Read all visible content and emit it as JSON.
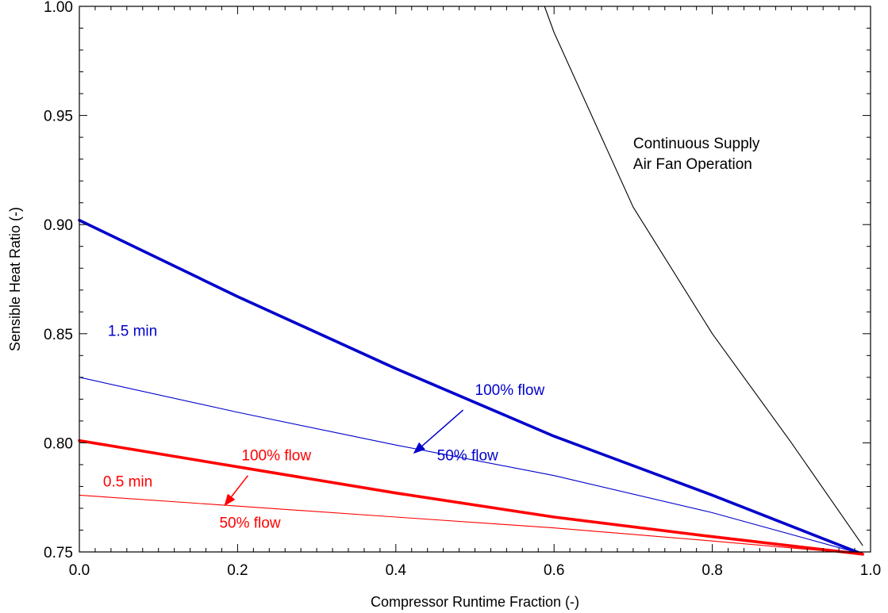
{
  "chart_data": {
    "type": "line",
    "title": "",
    "xlabel": "Compressor Runtime Fraction (-)",
    "ylabel": "Sensible Heat Ratio (-)",
    "xlim": [
      0.0,
      1.0
    ],
    "ylim": [
      0.75,
      1.0
    ],
    "x_ticks": [
      "0.0",
      "0.2",
      "0.4",
      "0.6",
      "0.8",
      "1.0"
    ],
    "y_ticks": [
      "0.75",
      "0.80",
      "0.85",
      "0.90",
      "0.95",
      "1.00"
    ],
    "grid": false,
    "legend": "none",
    "series": [
      {
        "color": "#0000cc",
        "width": "thick",
        "x": [
          0.0,
          0.2,
          0.4,
          0.6,
          0.8,
          0.99
        ],
        "y": [
          0.902,
          0.867,
          0.834,
          0.803,
          0.776,
          0.749
        ]
      },
      {
        "color": "#0000cc",
        "width": "thin",
        "x": [
          0.0,
          0.2,
          0.4,
          0.6,
          0.8,
          0.99
        ],
        "y": [
          0.83,
          0.814,
          0.799,
          0.785,
          0.768,
          0.749
        ]
      },
      {
        "color": "#ff0000",
        "width": "thick",
        "x": [
          0.0,
          0.2,
          0.4,
          0.6,
          0.8,
          0.99
        ],
        "y": [
          0.801,
          0.789,
          0.777,
          0.766,
          0.757,
          0.749
        ]
      },
      {
        "color": "#ff0000",
        "width": "thin",
        "x": [
          0.0,
          0.2,
          0.4,
          0.6,
          0.8,
          0.99
        ],
        "y": [
          0.776,
          0.771,
          0.766,
          0.761,
          0.755,
          0.749
        ]
      },
      {
        "color": "#000000",
        "width": "thin",
        "x": [
          0.588,
          0.6,
          0.7,
          0.8,
          0.9,
          0.99
        ],
        "y": [
          1.0,
          0.988,
          0.908,
          0.85,
          0.8,
          0.753
        ]
      }
    ],
    "annotations": [
      {
        "text_lines": [
          "Continuous Supply",
          "Air Fan Operation"
        ],
        "x": 0.7,
        "y": 0.935,
        "color": "#000000"
      },
      {
        "text_lines": [
          "1.5 min"
        ],
        "x": 0.036,
        "y": 0.849,
        "color": "#0000cc"
      },
      {
        "text_lines": [
          "100% flow"
        ],
        "x": 0.5,
        "y": 0.822,
        "color": "#0000cc"
      },
      {
        "text_lines": [
          "50% flow"
        ],
        "x": 0.452,
        "y": 0.792,
        "color": "#0000cc"
      },
      {
        "text_lines": [
          "100% flow"
        ],
        "x": 0.205,
        "y": 0.792,
        "color": "#ff0000"
      },
      {
        "text_lines": [
          "0.5 min"
        ],
        "x": 0.03,
        "y": 0.78,
        "color": "#ff0000"
      },
      {
        "text_lines": [
          "50% flow"
        ],
        "x": 0.177,
        "y": 0.761,
        "color": "#ff0000"
      }
    ],
    "arrows": [
      {
        "from": [
          0.485,
          0.815
        ],
        "to": [
          0.422,
          0.795
        ],
        "color": "#0000cc"
      },
      {
        "from": [
          0.213,
          0.785
        ],
        "to": [
          0.183,
          0.771
        ],
        "color": "#ff0000"
      }
    ]
  }
}
